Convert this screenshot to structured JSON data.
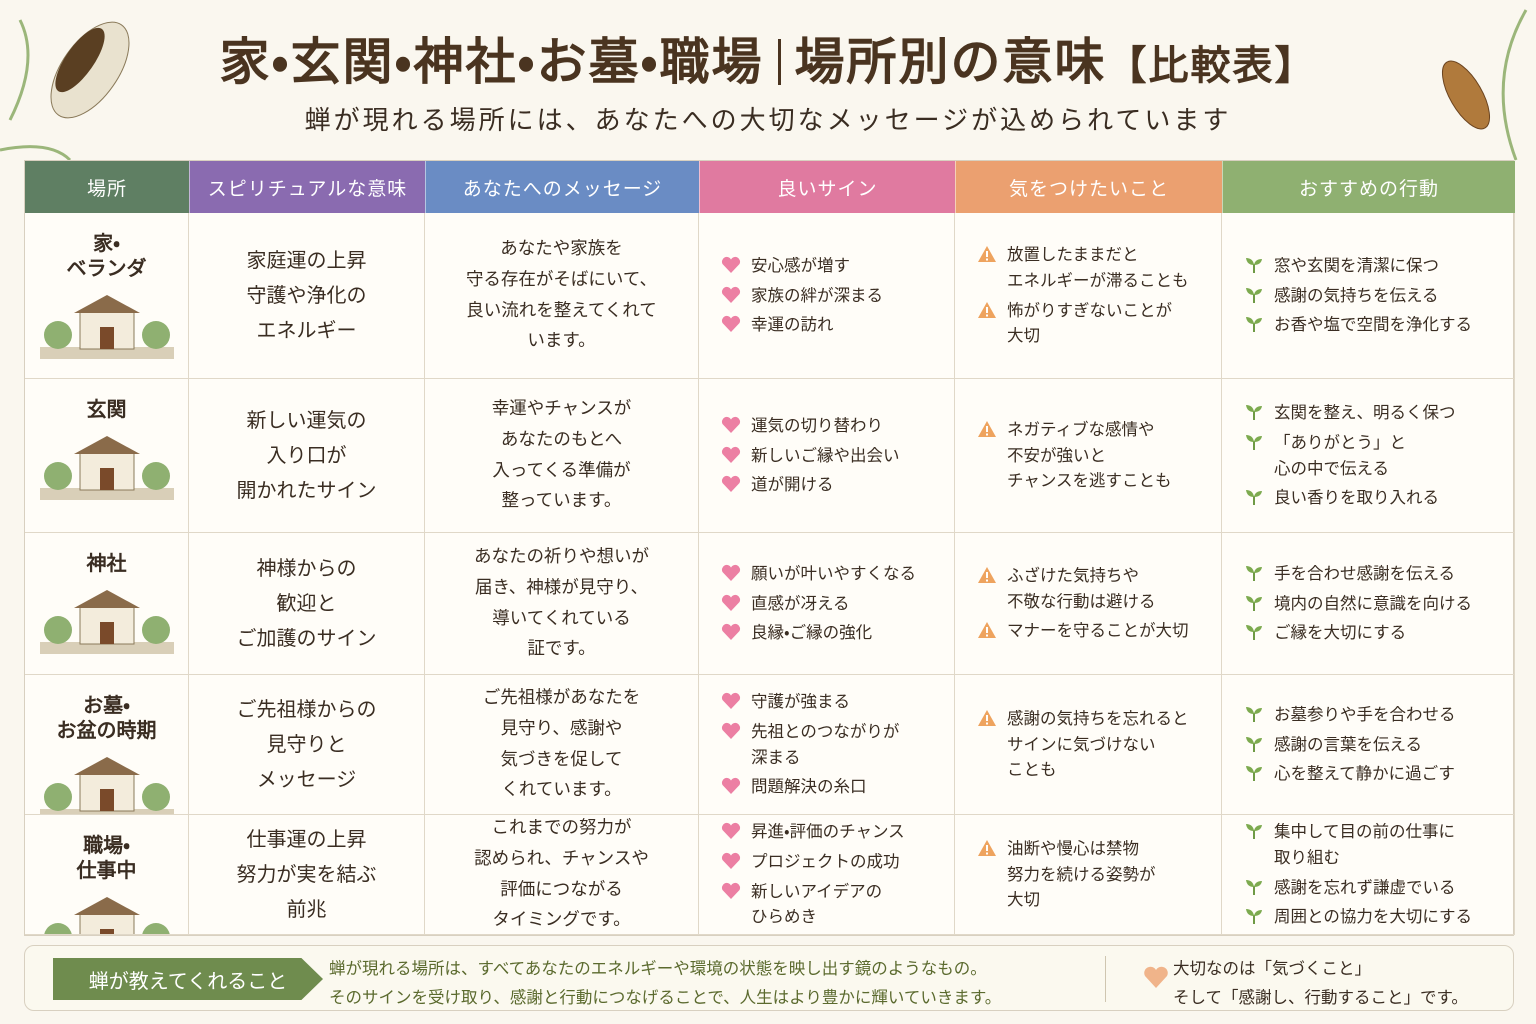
{
  "header": {
    "title_main": "家・玄関・神社・お墓・職場",
    "title_sub": "場所別の意味",
    "title_tag": "【比較表】",
    "subtitle": "蝉が現れる場所には、あなたへの大切なメッセージが込められています"
  },
  "table": {
    "columns": [
      "場所",
      "スピリチュアルな意味",
      "あなたへのメッセージ",
      "良いサイン",
      "気をつけたいこと",
      "おすすめの行動"
    ],
    "rows": [
      {
        "place": "家・\nベランダ",
        "meaning": "家庭運の上昇\n守護や浄化の\nエネルギー",
        "message": "あなたや家族を\n守る存在がそばにいて、\n良い流れを整えてくれて\nいます。",
        "good": [
          "安心感が増す",
          "家族の絆が深まる",
          "幸運の訪れ"
        ],
        "caution": [
          "放置したままだと\nエネルギーが滞ることも",
          "怖がりすぎないことが\n大切"
        ],
        "actions": [
          "窓や玄関を清潔に保つ",
          "感謝の気持ちを伝える",
          "お香や塩で空間を浄化する"
        ]
      },
      {
        "place": "玄関",
        "meaning": "新しい運気の\n入り口が\n開かれたサイン",
        "message": "幸運やチャンスが\nあなたのもとへ\n入ってくる準備が\n整っています。",
        "good": [
          "運気の切り替わり",
          "新しいご縁や出会い",
          "道が開ける"
        ],
        "caution": [
          "ネガティブな感情や\n不安が強いと\nチャンスを逃すことも"
        ],
        "actions": [
          "玄関を整え、明るく保つ",
          "「ありがとう」と\n心の中で伝える",
          "良い香りを取り入れる"
        ]
      },
      {
        "place": "神社",
        "meaning": "神様からの\n歓迎と\nご加護のサイン",
        "message": "あなたの祈りや想いが\n届き、神様が見守り、\n導いてくれている\n証です。",
        "good": [
          "願いが叶いやすくなる",
          "直感が冴える",
          "良縁・ご縁の強化"
        ],
        "caution": [
          "ふざけた気持ちや\n不敬な行動は避ける",
          "マナーを守ることが大切"
        ],
        "actions": [
          "手を合わせ感謝を伝える",
          "境内の自然に意識を向ける",
          "ご縁を大切にする"
        ]
      },
      {
        "place": "お墓・\nお盆の時期",
        "meaning": "ご先祖様からの\n見守りと\nメッセージ",
        "message": "ご先祖様があなたを\n見守り、感謝や\n気づきを促して\nくれています。",
        "good": [
          "守護が強まる",
          "先祖とのつながりが\n深まる",
          "問題解決の糸口"
        ],
        "caution": [
          "感謝の気持ちを忘れると\nサインに気づけない\nことも"
        ],
        "actions": [
          "お墓参りや手を合わせる",
          "感謝の言葉を伝える",
          "心を整えて静かに過ごす"
        ]
      },
      {
        "place": "職場・\n仕事中",
        "meaning": "仕事運の上昇\n努力が実を結ぶ\n前兆",
        "message": "これまでの努力が\n認められ、チャンスや\n評価につながる\nタイミングです。",
        "good": [
          "昇進・評価のチャンス",
          "プロジェクトの成功",
          "新しいアイデアの\nひらめき"
        ],
        "caution": [
          "油断や慢心は禁物\n努力を続ける姿勢が\n大切"
        ],
        "actions": [
          "集中して目の前の仕事に\n取り組む",
          "感謝を忘れず謙虚でいる",
          "周囲との協力を大切にする"
        ]
      }
    ]
  },
  "footer": {
    "label": "蝉が教えてくれること",
    "text": "蝉が現れる場所は、すべてあなたのエネルギーや環境の状態を映し出す鏡のようなもの。\nそのサインを受け取り、感謝と行動につなげることで、人生はより豊かに輝いていきます。",
    "note": "大切なのは「気づくこと」\nそして「感謝し、行動すること」です。"
  }
}
